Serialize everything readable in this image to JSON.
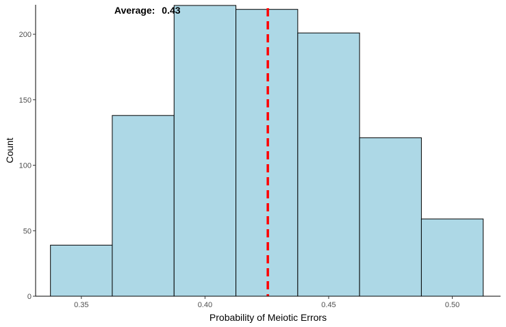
{
  "chart_data": {
    "type": "histogram",
    "xlabel": "Probability of Meiotic Errors",
    "ylabel": "Count",
    "xlim": [
      0.3315,
      0.5195
    ],
    "ylim": [
      0,
      222.5
    ],
    "x_ticks": [
      0.35,
      0.4,
      0.45,
      0.5
    ],
    "x_tick_labels": [
      "0.35",
      "0.40",
      "0.45",
      "0.50"
    ],
    "y_ticks": [
      0,
      50,
      100,
      150,
      200
    ],
    "y_tick_labels": [
      "0",
      "50",
      "100",
      "150",
      "200"
    ],
    "bin_width": 0.025,
    "bins": [
      {
        "x_start": 0.3375,
        "x_end": 0.3625,
        "count": 39
      },
      {
        "x_start": 0.3625,
        "x_end": 0.3875,
        "count": 138
      },
      {
        "x_start": 0.3875,
        "x_end": 0.4125,
        "count": 222
      },
      {
        "x_start": 0.4125,
        "x_end": 0.4375,
        "count": 219
      },
      {
        "x_start": 0.4375,
        "x_end": 0.4625,
        "count": 201
      },
      {
        "x_start": 0.4625,
        "x_end": 0.4875,
        "count": 121
      },
      {
        "x_start": 0.4875,
        "x_end": 0.5125,
        "count": 59
      }
    ],
    "mean_line": {
      "x": 0.4254
    },
    "annotation": {
      "label": "Average:",
      "value": "0.43"
    },
    "grid": false,
    "legend": "none"
  },
  "colors": {
    "bar_fill": "#add8e6",
    "bar_stroke": "#000000",
    "mean_line": "#ff0000",
    "axis": "#000000"
  }
}
